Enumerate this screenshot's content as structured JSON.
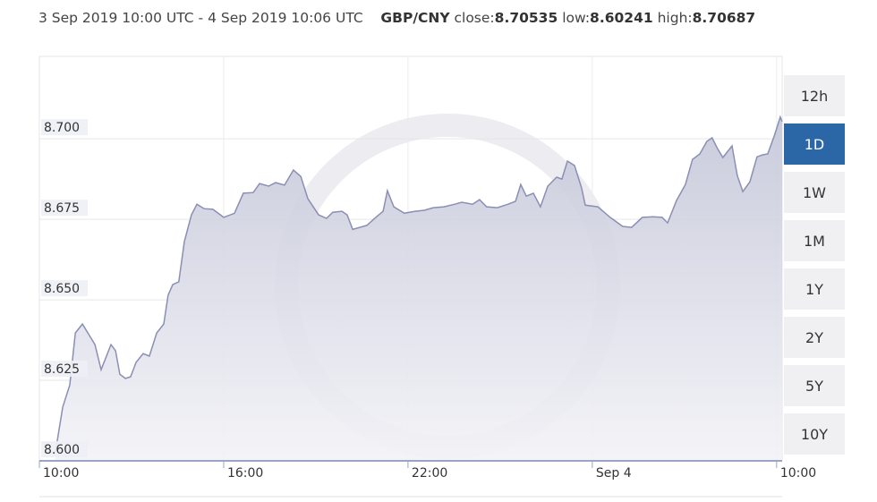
{
  "header": {
    "range": "3 Sep 2019 10:00 UTC - 4 Sep 2019 10:06 UTC",
    "pair": "GBP/CNY",
    "close_label": "close:",
    "close": 8.70535,
    "low_label": "low:",
    "low": 8.60241,
    "high_label": "high:",
    "high": 8.70687
  },
  "chart_data": {
    "type": "area",
    "color": "#8a8fb3",
    "x": [
      0.52,
      0.76,
      0.99,
      1.17,
      1.4,
      1.63,
      1.81,
      2.01,
      2.16,
      2.33,
      2.48,
      2.62,
      2.8,
      2.97,
      3.15,
      3.38,
      3.58,
      3.82,
      4.05,
      4.19,
      4.34,
      4.54,
      4.72,
      4.95,
      5.13,
      5.36,
      5.65,
      6.0,
      6.35,
      6.64,
      6.96,
      7.17,
      7.46,
      7.69,
      7.98,
      8.27,
      8.51,
      8.74,
      9.09,
      9.35,
      9.55,
      9.85,
      10.02,
      10.2,
      10.66,
      10.95,
      11.19,
      11.33,
      11.54,
      11.88,
      12.23,
      12.53,
      12.82,
      13.17,
      13.52,
      13.75,
      14.1,
      14.33,
      14.56,
      14.91,
      15.26,
      15.5,
      15.67,
      15.85,
      16.08,
      16.31,
      16.55,
      16.84,
      17.01,
      17.19,
      17.42,
      17.65,
      17.77,
      18.18,
      18.58,
      18.99,
      19.28,
      19.63,
      19.98,
      20.27,
      20.45,
      20.74,
      21.03,
      21.26,
      21.5,
      21.73,
      21.9,
      22.08,
      22.25,
      22.55,
      22.72,
      22.9,
      23.13,
      23.36,
      23.54,
      23.71,
      23.94,
      24.12,
      24.18
    ],
    "values": [
      8.6025,
      8.6167,
      8.6236,
      8.6397,
      8.6425,
      8.6389,
      8.6361,
      8.6283,
      8.6319,
      8.6361,
      8.6342,
      8.6269,
      8.6256,
      8.6261,
      8.6306,
      8.6333,
      8.6325,
      8.6397,
      8.6425,
      8.6514,
      8.6547,
      8.6556,
      8.6681,
      8.6764,
      8.6797,
      8.6783,
      8.6781,
      8.6756,
      8.6769,
      8.6831,
      8.6833,
      8.6861,
      8.6853,
      8.6864,
      8.6856,
      8.6903,
      8.6883,
      8.6814,
      8.6764,
      8.6753,
      8.6772,
      8.6775,
      8.6764,
      8.6719,
      8.6731,
      8.6756,
      8.6775,
      8.6839,
      8.6789,
      8.6769,
      8.6775,
      8.6778,
      8.6786,
      8.6789,
      8.6797,
      8.6803,
      8.6797,
      8.6811,
      8.6789,
      8.6786,
      8.6797,
      8.6806,
      8.6858,
      8.6822,
      8.6831,
      8.6789,
      8.6853,
      8.6881,
      8.6875,
      8.6931,
      8.6917,
      8.6847,
      8.6794,
      8.6789,
      8.6756,
      8.6728,
      8.6725,
      8.6756,
      8.6758,
      8.6756,
      8.6739,
      8.6808,
      8.6858,
      8.6936,
      8.6953,
      8.6992,
      8.7003,
      8.6969,
      8.6942,
      8.6978,
      8.6886,
      8.6836,
      8.6867,
      8.6944,
      8.695,
      8.6953,
      8.7014,
      8.7068,
      8.70535
    ],
    "xlim": [
      0,
      24.18
    ],
    "xticks": [
      {
        "value": 0,
        "label": "10:00"
      },
      {
        "value": 6,
        "label": "16:00"
      },
      {
        "value": 12,
        "label": "22:00"
      },
      {
        "value": 18,
        "label": "Sep 4"
      },
      {
        "value": 24,
        "label": "10:00"
      }
    ],
    "ylim": [
      8.6,
      8.7256
    ],
    "yticks": [
      {
        "value": 8.6,
        "label": "8.600"
      },
      {
        "value": 8.625,
        "label": "8.625"
      },
      {
        "value": 8.65,
        "label": "8.650"
      },
      {
        "value": 8.675,
        "label": "8.675"
      },
      {
        "value": 8.7,
        "label": "8.700"
      }
    ],
    "grid": true
  },
  "range_buttons": {
    "items": [
      "12h",
      "1D",
      "1W",
      "1M",
      "1Y",
      "2Y",
      "5Y",
      "10Y"
    ],
    "active": "1D"
  }
}
